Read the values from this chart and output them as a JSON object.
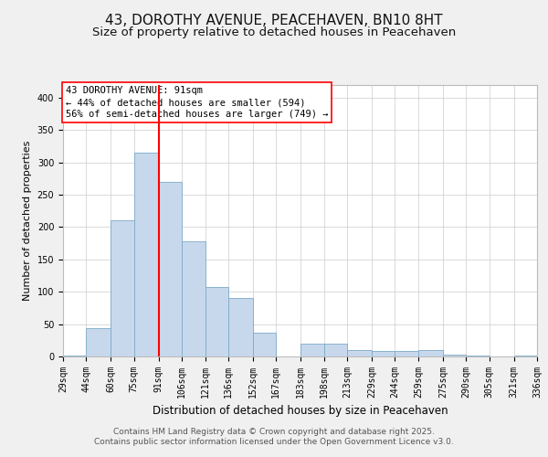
{
  "title": "43, DOROTHY AVENUE, PEACEHAVEN, BN10 8HT",
  "subtitle": "Size of property relative to detached houses in Peacehaven",
  "xlabel": "Distribution of detached houses by size in Peacehaven",
  "ylabel": "Number of detached properties",
  "bar_color": "#c8d8ec",
  "bar_edge_color": "#7aaac8",
  "vline_x": 91,
  "vline_color": "red",
  "annotation_line1": "43 DOROTHY AVENUE: 91sqm",
  "annotation_line2": "← 44% of detached houses are smaller (594)",
  "annotation_line3": "56% of semi-detached houses are larger (749) →",
  "footer_line1": "Contains HM Land Registry data © Crown copyright and database right 2025.",
  "footer_line2": "Contains public sector information licensed under the Open Government Licence v3.0.",
  "bin_edges": [
    29,
    44,
    60,
    75,
    91,
    106,
    121,
    136,
    152,
    167,
    183,
    198,
    213,
    229,
    244,
    259,
    275,
    290,
    305,
    321,
    336
  ],
  "bin_values": [
    2,
    44,
    210,
    315,
    270,
    178,
    107,
    91,
    37,
    0,
    20,
    20,
    10,
    9,
    9,
    10,
    3,
    2,
    0,
    2
  ],
  "ylim": [
    0,
    420
  ],
  "yticks": [
    0,
    50,
    100,
    150,
    200,
    250,
    300,
    350,
    400
  ],
  "background_color": "#f0f0f0",
  "plot_bg_color": "#ffffff",
  "grid_color": "#cccccc",
  "title_fontsize": 11,
  "subtitle_fontsize": 9.5,
  "ylabel_fontsize": 8,
  "xlabel_fontsize": 8.5,
  "tick_fontsize": 7,
  "footer_fontsize": 6.5,
  "annotation_fontsize": 7.5
}
